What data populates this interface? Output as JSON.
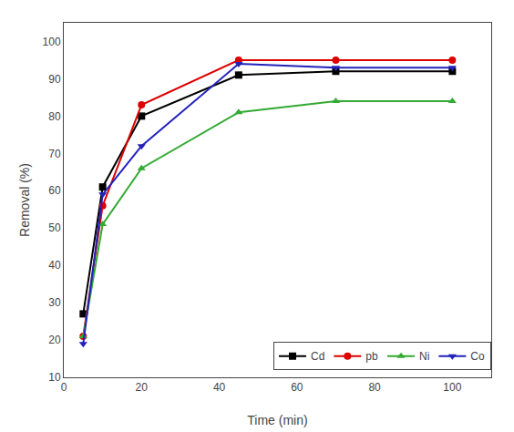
{
  "chart_data": {
    "type": "line",
    "x": [
      5,
      10,
      20,
      45,
      70,
      100
    ],
    "series": [
      {
        "name": "Cd",
        "color": "#000000",
        "marker": "square",
        "values": [
          27,
          61,
          80,
          91,
          92,
          92
        ]
      },
      {
        "name": "pb",
        "color": "#dd0000",
        "marker": "circle",
        "values": [
          21,
          56,
          83,
          95,
          95,
          95
        ]
      },
      {
        "name": "Ni",
        "color": "#33aa33",
        "marker": "triangle-up",
        "values": [
          21,
          51,
          66,
          81,
          84,
          84
        ]
      },
      {
        "name": "Co",
        "color": "#2222bb",
        "marker": "triangle-down",
        "values": [
          19,
          59,
          72,
          94,
          93,
          93
        ]
      }
    ],
    "xlabel": "Time (min)",
    "ylabel": "Removal (%)",
    "xlim": [
      0,
      110
    ],
    "ylim": [
      10,
      105
    ],
    "xticks": [
      0,
      20,
      40,
      60,
      80,
      100
    ],
    "yticks": [
      10,
      20,
      30,
      40,
      50,
      60,
      70,
      80,
      90,
      100
    ],
    "grid": false,
    "legend": "lower right"
  }
}
